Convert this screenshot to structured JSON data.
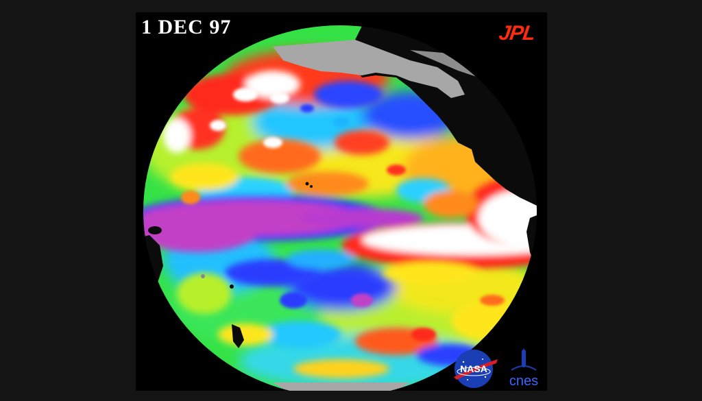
{
  "image": {
    "date_label": "1 DEC 97",
    "logos": {
      "jpl": "JPL",
      "nasa": "NASA",
      "cnes": "cnes"
    },
    "colors": {
      "background": "#141414",
      "frame": "#000000",
      "land": "#0b0b0b",
      "ice": "#a7a7a7",
      "anomaly_high": "#ffffff",
      "anomaly_warm": "#ff2020",
      "anomaly_mid": "#ffe600",
      "anomaly_neutral": "#2fe84a",
      "anomaly_cool": "#23b8ff",
      "anomaly_cold": "#2a38ff",
      "anomaly_low": "#c53ac4",
      "jpl_logo": "#ff2a10",
      "nasa_blue": "#1a3fb5",
      "nasa_red": "#d41f2a"
    }
  }
}
